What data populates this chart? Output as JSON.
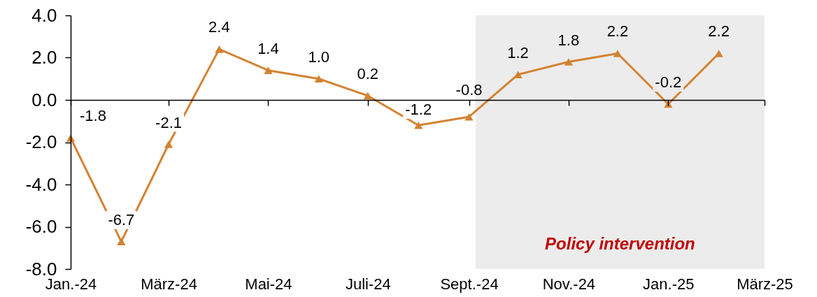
{
  "chart_data": {
    "type": "line",
    "x": [
      "2024-01",
      "2024-02",
      "2024-03",
      "2024-04",
      "2024-05",
      "2024-06",
      "2024-07",
      "2024-08",
      "2024-09",
      "2024-10",
      "2024-11",
      "2024-12",
      "2025-01",
      "2025-02"
    ],
    "series": [
      {
        "color": "#d38232",
        "values": [
          -1.8,
          -6.7,
          -2.1,
          2.4,
          1.4,
          1.0,
          0.2,
          -1.2,
          -0.8,
          1.2,
          1.8,
          2.2,
          -0.2,
          2.2
        ],
        "value_labels": [
          "-1.8",
          "-6.7",
          "-2.1",
          "2.4",
          "1.4",
          "1.0",
          "0.2",
          "-1.2",
          "-0.8",
          "1.2",
          "1.8",
          "2.2",
          "-0.2",
          "2.2"
        ]
      }
    ],
    "xlim": [
      "2024-01",
      "2025-03"
    ],
    "xticks": [
      {
        "value": "2024-01",
        "label": "Jan.-24"
      },
      {
        "value": "2024-03",
        "label": "März-24"
      },
      {
        "value": "2024-05",
        "label": "Mai-24"
      },
      {
        "value": "2024-07",
        "label": "Juli-24"
      },
      {
        "value": "2024-09",
        "label": "Sept.-24"
      },
      {
        "value": "2024-11",
        "label": "Nov.-24"
      },
      {
        "value": "2025-01",
        "label": "Jan.-25"
      },
      {
        "value": "2025-03",
        "label": "März-25"
      }
    ],
    "ylim": [
      -8,
      4
    ],
    "yticks": [
      {
        "value": -8,
        "label": "-8.0"
      },
      {
        "value": -6,
        "label": "-6.0"
      },
      {
        "value": -4,
        "label": "-4.0"
      },
      {
        "value": -2,
        "label": "-2.0"
      },
      {
        "value": 0,
        "label": "0.0"
      },
      {
        "value": 2,
        "label": "2.0"
      },
      {
        "value": 4,
        "label": "4.0"
      }
    ],
    "bands": [
      {
        "axis": "x",
        "from": "2024-09-05",
        "to": "2025-03",
        "label": "Policy intervention",
        "color": "#ececec"
      }
    ],
    "marker": "triangle",
    "line_style": "solid"
  }
}
